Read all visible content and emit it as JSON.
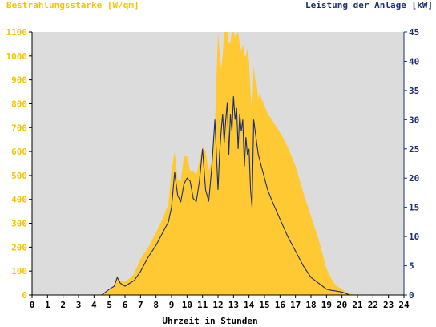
{
  "chart_data": {
    "type": "area",
    "ylabel_left": "Bestrahlungsstärke [W/qm]",
    "ylabel_right": "Leistung der Anlage [kW]",
    "xlabel": "Uhrzeit in Stunden",
    "xlim": [
      0,
      24
    ],
    "ylim_left": [
      0,
      1100
    ],
    "ylim_right": [
      0,
      45
    ],
    "x_ticks": [
      "0",
      "1",
      "2",
      "3",
      "4",
      "5",
      "6",
      "7",
      "8",
      "9",
      "10",
      "11",
      "12",
      "13",
      "14",
      "15",
      "16",
      "17",
      "18",
      "19",
      "20",
      "21",
      "22",
      "23",
      "24"
    ],
    "y_ticks_left": [
      "0",
      "100",
      "200",
      "300",
      "400",
      "500",
      "600",
      "700",
      "800",
      "900",
      "1000",
      "1100"
    ],
    "y_ticks_right": [
      "0",
      "5",
      "10",
      "15",
      "20",
      "25",
      "30",
      "35",
      "40",
      "45"
    ],
    "grid": false,
    "series": [
      {
        "name": "Bestrahlungsstärke [W/qm]",
        "axis": "left",
        "kind": "area",
        "x": [
          0,
          4.5,
          5.0,
          5.3,
          5.5,
          5.7,
          6.0,
          6.3,
          6.6,
          7.0,
          7.5,
          8.0,
          8.5,
          8.8,
          9.0,
          9.2,
          9.4,
          9.6,
          9.8,
          10.0,
          10.2,
          10.4,
          10.6,
          10.8,
          11.0,
          11.2,
          11.4,
          11.6,
          11.8,
          12.0,
          12.1,
          12.2,
          12.3,
          12.4,
          12.5,
          12.6,
          12.7,
          12.8,
          12.9,
          13.0,
          13.1,
          13.2,
          13.3,
          13.4,
          13.5,
          13.6,
          13.7,
          13.8,
          13.9,
          14.0,
          14.1,
          14.2,
          14.3,
          14.4,
          14.5,
          14.6,
          14.7,
          14.8,
          14.9,
          15.0,
          15.2,
          15.5,
          16.0,
          16.5,
          17.0,
          17.5,
          18.0,
          18.5,
          19.0,
          19.3,
          19.6,
          20.0,
          20.3,
          20.5,
          21.0,
          24
        ],
        "values": [
          0,
          0,
          20,
          40,
          80,
          60,
          55,
          70,
          90,
          150,
          200,
          260,
          330,
          380,
          520,
          600,
          480,
          480,
          580,
          580,
          520,
          520,
          500,
          560,
          620,
          600,
          520,
          560,
          700,
          1100,
          1020,
          950,
          1000,
          1100,
          1120,
          1100,
          1050,
          1060,
          1100,
          1130,
          1080,
          1090,
          1100,
          1050,
          1020,
          1050,
          1000,
          1000,
          1030,
          980,
          850,
          760,
          960,
          900,
          880,
          820,
          850,
          820,
          810,
          790,
          760,
          730,
          680,
          620,
          540,
          430,
          330,
          230,
          110,
          70,
          40,
          25,
          10,
          5,
          0,
          0
        ]
      },
      {
        "name": "Leistung der Anlage [kW]",
        "axis": "right",
        "kind": "line",
        "x": [
          0,
          4.5,
          5.0,
          5.3,
          5.5,
          5.7,
          6.0,
          6.3,
          6.6,
          7.0,
          7.5,
          8.0,
          8.5,
          8.8,
          9.0,
          9.2,
          9.4,
          9.6,
          9.8,
          10.0,
          10.2,
          10.4,
          10.6,
          10.8,
          11.0,
          11.2,
          11.4,
          11.6,
          11.8,
          12.0,
          12.1,
          12.2,
          12.3,
          12.4,
          12.5,
          12.6,
          12.7,
          12.8,
          12.9,
          13.0,
          13.1,
          13.2,
          13.3,
          13.4,
          13.5,
          13.6,
          13.7,
          13.8,
          13.9,
          14.0,
          14.1,
          14.2,
          14.3,
          14.4,
          14.5,
          14.6,
          14.7,
          14.8,
          14.9,
          15.0,
          15.2,
          15.5,
          16.0,
          16.5,
          17.0,
          17.5,
          18.0,
          18.5,
          19.0,
          19.3,
          19.6,
          20.0,
          20.3,
          20.5,
          21.0,
          24
        ],
        "values": [
          0,
          0,
          1,
          1.5,
          3,
          2,
          1.5,
          2,
          2.5,
          4,
          6.5,
          8.5,
          11,
          12.5,
          15,
          21,
          17,
          16,
          19,
          20,
          19.5,
          16.5,
          16,
          19.5,
          25,
          18,
          16,
          22,
          30,
          18,
          24,
          28,
          31,
          26,
          30,
          33,
          24,
          31,
          28,
          34,
          30,
          32,
          25,
          31,
          28,
          30,
          22,
          27,
          24,
          25,
          18,
          15,
          30,
          28,
          26,
          24,
          23,
          22,
          21,
          20,
          18,
          16,
          13,
          10,
          7.5,
          5,
          3,
          2,
          1,
          0.8,
          0.7,
          0.5,
          0.2,
          0,
          0,
          0
        ]
      }
    ]
  }
}
